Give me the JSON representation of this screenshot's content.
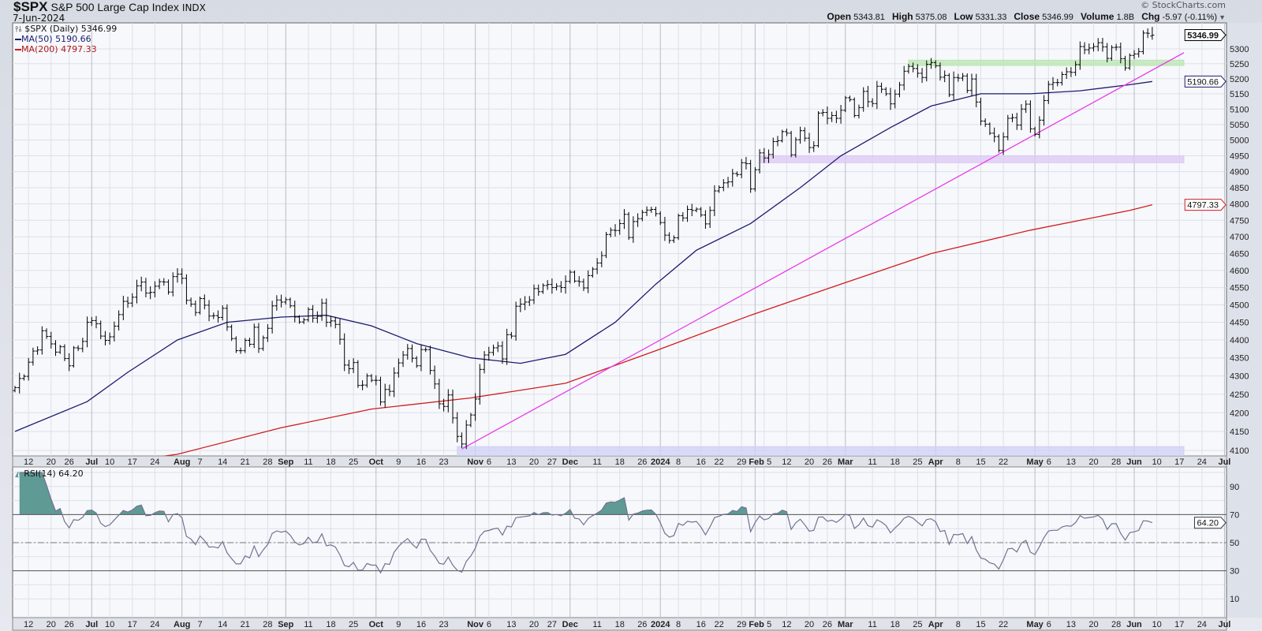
{
  "header": {
    "symbol": "$SPX",
    "name": "S&P 500 Large Cap Index",
    "exchange": "INDX",
    "date": "7-Jun-2024",
    "brand": "© StockCharts.com",
    "open_label": "Open",
    "open": "5343.81",
    "high_label": "High",
    "high": "5375.08",
    "low_label": "Low",
    "low": "5331.33",
    "close_label": "Close",
    "close": "5346.99",
    "volume_label": "Volume",
    "volume": "1.8B",
    "chg_label": "Chg",
    "chg": "-5.97 (-0.11%)"
  },
  "legend": {
    "price": "$SPX (Daily) 5346.99",
    "ma50": "MA(50) 5190.66",
    "ma200": "MA(200) 4797.33",
    "rsi": "RSI(14) 64.20"
  },
  "tags": {
    "price": "5346.99",
    "ma50": "5190.66",
    "ma200": "4797.33",
    "rsi": "64.20"
  },
  "colors": {
    "bars": "#000000",
    "ma50": "#1c1c6e",
    "ma200": "#d01c1c",
    "trendline": "#e83de8",
    "green_zone": "#b9e6b0",
    "purple_zone": "#dcc8f5",
    "blue_zone": "#cfd0f7",
    "rsi_line": "#6e7490",
    "rsi_fill": "#5f9a95"
  },
  "chart_data": [
    {
      "type": "ohlc",
      "scale": "log",
      "ylim": [
        4080,
        5390
      ],
      "grid": true,
      "y_ticks": [
        4100,
        4150,
        4200,
        4250,
        4300,
        4350,
        4400,
        4450,
        4500,
        4550,
        4600,
        4650,
        4700,
        4750,
        4800,
        4850,
        4900,
        4950,
        5000,
        5050,
        5100,
        5150,
        5200,
        5250,
        5300
      ],
      "x_ticks": [
        [
          "12",
          "2023-06-12"
        ],
        [
          "20",
          "2023-06-20"
        ],
        [
          "26",
          "2023-06-26"
        ],
        [
          "Jul",
          "2023-07-03"
        ],
        [
          "10",
          "2023-07-10"
        ],
        [
          "17",
          "2023-07-17"
        ],
        [
          "24",
          "2023-07-24"
        ],
        [
          "Aug",
          "2023-08-01"
        ],
        [
          "7",
          "2023-08-07"
        ],
        [
          "14",
          "2023-08-14"
        ],
        [
          "21",
          "2023-08-21"
        ],
        [
          "28",
          "2023-08-28"
        ],
        [
          "Sep",
          "2023-09-01"
        ],
        [
          "11",
          "2023-09-11"
        ],
        [
          "18",
          "2023-09-18"
        ],
        [
          "25",
          "2023-09-25"
        ],
        [
          "Oct",
          "2023-10-02"
        ],
        [
          "9",
          "2023-10-09"
        ],
        [
          "16",
          "2023-10-16"
        ],
        [
          "23",
          "2023-10-23"
        ],
        [
          "Nov",
          "2023-11-01"
        ],
        [
          "6",
          "2023-11-06"
        ],
        [
          "13",
          "2023-11-13"
        ],
        [
          "20",
          "2023-11-20"
        ],
        [
          "27",
          "2023-11-27"
        ],
        [
          "Dec",
          "2023-12-01"
        ],
        [
          "11",
          "2023-12-11"
        ],
        [
          "18",
          "2023-12-18"
        ],
        [
          "26",
          "2023-12-26"
        ],
        [
          "2024",
          "2024-01-02"
        ],
        [
          "8",
          "2024-01-08"
        ],
        [
          "16",
          "2024-01-16"
        ],
        [
          "22",
          "2024-01-22"
        ],
        [
          "29",
          "2024-01-29"
        ],
        [
          "Feb",
          "2024-02-01"
        ],
        [
          "5",
          "2024-02-05"
        ],
        [
          "12",
          "2024-02-12"
        ],
        [
          "20",
          "2024-02-20"
        ],
        [
          "26",
          "2024-02-26"
        ],
        [
          "Mar",
          "2024-03-01"
        ],
        [
          "11",
          "2024-03-11"
        ],
        [
          "18",
          "2024-03-18"
        ],
        [
          "25",
          "2024-03-25"
        ],
        [
          "Apr",
          "2024-04-01"
        ],
        [
          "8",
          "2024-04-08"
        ],
        [
          "15",
          "2024-04-15"
        ],
        [
          "22",
          "2024-04-22"
        ],
        [
          "May",
          "2024-05-01"
        ],
        [
          "6",
          "2024-05-06"
        ],
        [
          "13",
          "2024-05-13"
        ],
        [
          "20",
          "2024-05-20"
        ],
        [
          "28",
          "2024-05-28"
        ],
        [
          "Jun",
          "2024-06-03"
        ],
        [
          "10",
          "2024-06-10"
        ],
        [
          "17",
          "2024-06-17"
        ],
        [
          "24",
          "2024-06-24"
        ],
        [
          "Jul",
          "2024-07-01"
        ]
      ],
      "last_bar": {
        "open": 5343.81,
        "high": 5375.08,
        "low": 5331.33,
        "close": 5346.99
      },
      "months": [
        {
          "m": "2023-06",
          "d": [
            7,
            8,
            9,
            12,
            13,
            14,
            15,
            16,
            20,
            21,
            22,
            23,
            26,
            27,
            28,
            29,
            30
          ],
          "c": [
            4268,
            4293,
            4299,
            4338,
            4369,
            4372,
            4426,
            4410,
            4389,
            4366,
            4381,
            4348,
            4328,
            4378,
            4376,
            4396,
            4450
          ]
        },
        {
          "m": "2023-07",
          "d": [
            3,
            5,
            6,
            7,
            10,
            11,
            12,
            13,
            14,
            17,
            18,
            19,
            20,
            21,
            24,
            25,
            26,
            27,
            28,
            31
          ],
          "c": [
            4455,
            4446,
            4411,
            4399,
            4409,
            4439,
            4472,
            4510,
            4505,
            4522,
            4555,
            4566,
            4534,
            4536,
            4554,
            4567,
            4566,
            4537,
            4582,
            4589
          ]
        },
        {
          "m": "2023-08",
          "d": [
            1,
            2,
            3,
            4,
            7,
            8,
            9,
            10,
            11,
            14,
            15,
            16,
            17,
            18,
            21,
            22,
            23,
            24,
            25,
            28,
            29,
            30,
            31
          ],
          "c": [
            4577,
            4513,
            4502,
            4478,
            4518,
            4499,
            4468,
            4469,
            4464,
            4490,
            4437,
            4404,
            4370,
            4370,
            4399,
            4388,
            4436,
            4376,
            4406,
            4433,
            4497,
            4514,
            4508
          ]
        },
        {
          "m": "2023-09",
          "d": [
            1,
            5,
            6,
            7,
            8,
            11,
            12,
            13,
            14,
            15,
            18,
            19,
            20,
            21,
            22,
            25,
            26,
            27,
            28,
            29
          ],
          "c": [
            4515,
            4497,
            4465,
            4451,
            4457,
            4487,
            4462,
            4467,
            4505,
            4450,
            4454,
            4444,
            4402,
            4330,
            4320,
            4337,
            4274,
            4275,
            4300,
            4288
          ]
        },
        {
          "m": "2023-10",
          "d": [
            2,
            3,
            4,
            5,
            6,
            9,
            10,
            11,
            12,
            13,
            16,
            17,
            18,
            19,
            20,
            23,
            24,
            25,
            26,
            27,
            30,
            31
          ],
          "c": [
            4288,
            4229,
            4263,
            4258,
            4308,
            4336,
            4358,
            4376,
            4349,
            4328,
            4373,
            4373,
            4315,
            4278,
            4224,
            4217,
            4248,
            4186,
            4137,
            4117,
            4167,
            4194
          ]
        },
        {
          "m": "2023-11",
          "d": [
            1,
            2,
            3,
            6,
            7,
            8,
            9,
            10,
            13,
            14,
            15,
            16,
            17,
            20,
            21,
            22,
            24,
            27,
            28,
            29,
            30
          ],
          "c": [
            4237,
            4318,
            4358,
            4365,
            4378,
            4383,
            4347,
            4415,
            4411,
            4496,
            4502,
            4508,
            4514,
            4547,
            4538,
            4556,
            4559,
            4550,
            4554,
            4550,
            4568
          ]
        },
        {
          "m": "2023-12",
          "d": [
            1,
            4,
            5,
            6,
            7,
            8,
            11,
            12,
            13,
            14,
            15,
            18,
            19,
            20,
            21,
            22,
            26,
            27,
            28,
            29
          ],
          "c": [
            4595,
            4569,
            4567,
            4549,
            4585,
            4604,
            4622,
            4644,
            4707,
            4720,
            4719,
            4740,
            4768,
            4698,
            4746,
            4755,
            4774,
            4781,
            4783,
            4770
          ]
        },
        {
          "m": "2024-01",
          "d": [
            2,
            3,
            4,
            5,
            8,
            9,
            10,
            11,
            12,
            16,
            17,
            18,
            19,
            22,
            23,
            24,
            25,
            26,
            29,
            30,
            31
          ],
          "c": [
            4743,
            4705,
            4689,
            4697,
            4764,
            4757,
            4783,
            4780,
            4784,
            4766,
            4739,
            4780,
            4840,
            4851,
            4865,
            4868,
            4894,
            4891,
            4928,
            4925,
            4846
          ]
        },
        {
          "m": "2024-02",
          "d": [
            1,
            2,
            5,
            6,
            7,
            8,
            9,
            12,
            13,
            14,
            15,
            16,
            20,
            21,
            22,
            23,
            26,
            27,
            28,
            29
          ],
          "c": [
            4906,
            4959,
            4943,
            4954,
            4995,
            4998,
            5027,
            5022,
            4953,
            5001,
            5030,
            5006,
            4976,
            4982,
            5087,
            5089,
            5070,
            5079,
            5070,
            5096
          ]
        },
        {
          "m": "2024-03",
          "d": [
            1,
            4,
            5,
            6,
            7,
            8,
            11,
            12,
            13,
            14,
            15,
            18,
            19,
            20,
            21,
            22,
            25,
            26,
            27,
            28
          ],
          "c": [
            5137,
            5131,
            5079,
            5105,
            5158,
            5124,
            5118,
            5175,
            5165,
            5150,
            5117,
            5149,
            5179,
            5225,
            5241,
            5234,
            5218,
            5204,
            5248,
            5254
          ]
        },
        {
          "m": "2024-04",
          "d": [
            1,
            2,
            3,
            4,
            5,
            8,
            9,
            10,
            11,
            12,
            15,
            16,
            17,
            18,
            19,
            22,
            23,
            24,
            25,
            26,
            29,
            30
          ],
          "c": [
            5243,
            5205,
            5211,
            5147,
            5204,
            5202,
            5209,
            5161,
            5199,
            5123,
            5061,
            5051,
            5022,
            5011,
            4967,
            5010,
            5070,
            5072,
            5048,
            5100,
            5116,
            5036
          ]
        },
        {
          "m": "2024-05",
          "d": [
            1,
            2,
            3,
            6,
            7,
            8,
            9,
            10,
            13,
            14,
            15,
            16,
            17,
            20,
            21,
            22,
            23,
            24,
            28,
            29,
            30,
            31
          ],
          "c": [
            5018,
            5064,
            5128,
            5181,
            5187,
            5187,
            5214,
            5223,
            5221,
            5247,
            5308,
            5297,
            5303,
            5308,
            5321,
            5307,
            5268,
            5305,
            5306,
            5267,
            5236,
            5278
          ]
        },
        {
          "m": "2024-06",
          "d": [
            3,
            4,
            5,
            6,
            7
          ],
          "c": [
            5283,
            5291,
            5354,
            5353,
            5347
          ]
        }
      ],
      "ma50": [
        [
          "2023-06-07",
          4150
        ],
        [
          "2023-06-30",
          4230
        ],
        [
          "2023-07-14",
          4310
        ],
        [
          "2023-07-31",
          4400
        ],
        [
          "2023-08-15",
          4450
        ],
        [
          "2023-08-31",
          4465
        ],
        [
          "2023-09-15",
          4470
        ],
        [
          "2023-09-29",
          4440
        ],
        [
          "2023-10-13",
          4390
        ],
        [
          "2023-10-31",
          4350
        ],
        [
          "2023-11-15",
          4335
        ],
        [
          "2023-11-30",
          4360
        ],
        [
          "2023-12-15",
          4450
        ],
        [
          "2023-12-29",
          4560
        ],
        [
          "2024-01-12",
          4660
        ],
        [
          "2024-01-31",
          4740
        ],
        [
          "2024-02-15",
          4850
        ],
        [
          "2024-02-29",
          4950
        ],
        [
          "2024-03-15",
          5040
        ],
        [
          "2024-03-28",
          5110
        ],
        [
          "2024-04-15",
          5150
        ],
        [
          "2024-04-30",
          5150
        ],
        [
          "2024-05-15",
          5160
        ],
        [
          "2024-05-31",
          5180
        ],
        [
          "2024-06-07",
          5190.66
        ]
      ],
      "ma200": [
        [
          "2023-06-07",
          4030
        ],
        [
          "2023-07-31",
          4090
        ],
        [
          "2023-08-31",
          4160
        ],
        [
          "2023-09-29",
          4210
        ],
        [
          "2023-10-31",
          4240
        ],
        [
          "2023-11-30",
          4280
        ],
        [
          "2023-12-29",
          4370
        ],
        [
          "2024-01-31",
          4470
        ],
        [
          "2024-02-29",
          4560
        ],
        [
          "2024-03-28",
          4650
        ],
        [
          "2024-04-30",
          4720
        ],
        [
          "2024-05-31",
          4780
        ],
        [
          "2024-06-07",
          4797.33
        ]
      ],
      "annotations": {
        "trendline": [
          [
            "2023-10-27",
            4104
          ],
          [
            "2024-06-18",
            5287
          ]
        ],
        "zones": [
          {
            "name": "green",
            "from": "2024-03-21",
            "to": "2024-06-18",
            "low": 5244,
            "high": 5262
          },
          {
            "name": "purple",
            "from": "2024-02-02",
            "to": "2024-06-18",
            "low": 4928,
            "high": 4950
          },
          {
            "name": "blue",
            "from": "2023-10-26",
            "to": "2024-06-18",
            "low": 4070,
            "high": 4110
          }
        ]
      }
    },
    {
      "type": "line",
      "name": "RSI(14)",
      "ylim": [
        0,
        100
      ],
      "y_ticks": [
        90,
        70,
        50,
        30,
        10
      ],
      "reference_lines": [
        70,
        50,
        30
      ],
      "last_value": 64.2
    }
  ]
}
